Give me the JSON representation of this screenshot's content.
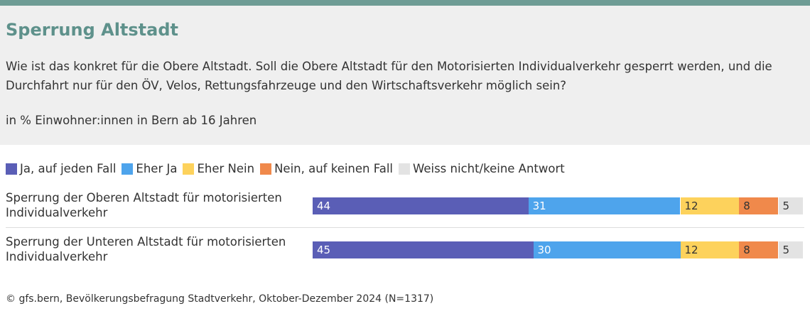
{
  "chart_data": {
    "type": "stacked_bar_horizontal",
    "title": "Sperrung Altstadt",
    "subtitle": "Wie ist das konkret für die Obere Altstadt. Soll die Obere Altstadt für den Motorisierten Individualverkehr gesperrt werden, und die Durchfahrt nur für den ÖV, Velos, Rettungsfahrzeuge und den Wirtschaftsverkehr möglich sein?",
    "note": "in % Einwohner:innen in Bern ab 16 Jahren",
    "source": "© gfs.bern, Bevölkerungsbefragung Stadtverkehr, Oktober-Dezember 2024 (N=1317)",
    "categories": [
      "Sperrung der Oberen Altstadt für motorisierten Individualverkehr",
      "Sperrung der Unteren Altstadt für motorisierten Individualverkehr"
    ],
    "xlim": [
      0,
      100
    ],
    "series": [
      {
        "name": "Ja, auf jeden Fall",
        "color": "#5a5eb6",
        "values": [
          44,
          45
        ]
      },
      {
        "name": "Eher Ja",
        "color": "#4ea4ec",
        "values": [
          31,
          30
        ]
      },
      {
        "name": "Eher Nein",
        "color": "#fdd25c",
        "values": [
          12,
          12
        ]
      },
      {
        "name": "Nein, auf keinen Fall",
        "color": "#f0894b",
        "values": [
          8,
          8
        ]
      },
      {
        "name": "Weiss nicht/keine Antwort",
        "color": "#e3e3e3",
        "values": [
          5,
          5
        ]
      }
    ]
  }
}
